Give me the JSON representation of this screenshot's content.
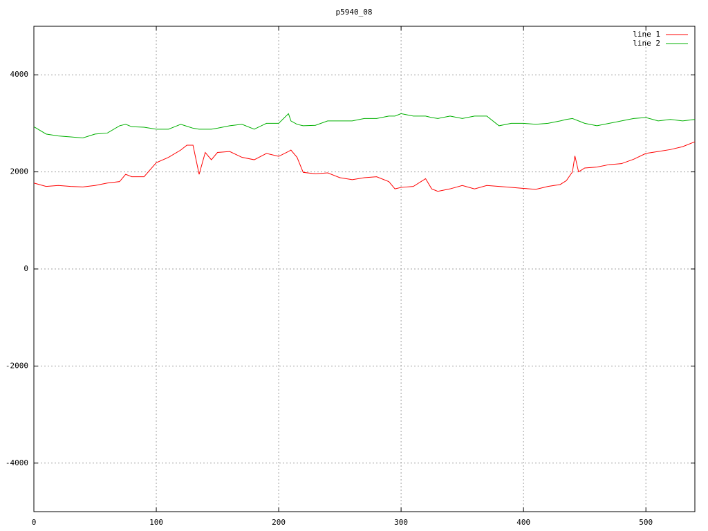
{
  "chart_data": {
    "type": "line",
    "title": "p5940_08",
    "x": [
      0,
      10,
      20,
      30,
      40,
      50,
      60,
      70,
      75,
      80,
      90,
      100,
      110,
      120,
      125,
      130,
      135,
      140,
      145,
      150,
      160,
      170,
      180,
      190,
      200,
      208,
      210,
      215,
      220,
      230,
      240,
      250,
      260,
      270,
      280,
      290,
      295,
      300,
      310,
      320,
      325,
      330,
      340,
      350,
      360,
      370,
      380,
      390,
      400,
      410,
      420,
      430,
      435,
      440,
      442,
      445,
      450,
      460,
      470,
      480,
      490,
      500,
      510,
      520,
      530,
      540
    ],
    "series": [
      {
        "name": "line 1",
        "color": "#ff0000",
        "values": [
          1770,
          1700,
          1720,
          1700,
          1690,
          1720,
          1770,
          1800,
          1950,
          1900,
          1900,
          2190,
          2300,
          2450,
          2550,
          2550,
          1950,
          2400,
          2250,
          2400,
          2420,
          2300,
          2250,
          2380,
          2320,
          2420,
          2450,
          2300,
          1990,
          1960,
          1980,
          1880,
          1840,
          1880,
          1900,
          1800,
          1650,
          1680,
          1700,
          1860,
          1650,
          1600,
          1650,
          1720,
          1650,
          1720,
          1700,
          1680,
          1660,
          1640,
          1700,
          1740,
          1820,
          2000,
          2330,
          2000,
          2080,
          2100,
          2150,
          2170,
          2260,
          2380,
          2420,
          2460,
          2520,
          2620
        ]
      },
      {
        "name": "line 2",
        "color": "#00b000",
        "values": [
          2930,
          2780,
          2740,
          2720,
          2700,
          2780,
          2800,
          2950,
          2980,
          2930,
          2920,
          2880,
          2880,
          2980,
          2940,
          2900,
          2880,
          2880,
          2880,
          2900,
          2950,
          2980,
          2880,
          3000,
          3000,
          3200,
          3050,
          2980,
          2950,
          2960,
          3050,
          3050,
          3050,
          3100,
          3100,
          3150,
          3150,
          3200,
          3150,
          3150,
          3120,
          3100,
          3150,
          3100,
          3150,
          3150,
          2950,
          3000,
          3000,
          2980,
          3000,
          3050,
          3080,
          3100,
          3080,
          3050,
          3000,
          2950,
          3000,
          3050,
          3100,
          3120,
          3050,
          3080,
          3050,
          3080
        ]
      }
    ],
    "xlim": [
      0,
      540
    ],
    "ylim": [
      -5000,
      5000
    ],
    "xticks": [
      0,
      100,
      200,
      300,
      400,
      500
    ],
    "yticks": [
      -4000,
      -2000,
      0,
      2000,
      4000
    ],
    "grid": true,
    "legend": "top-right"
  }
}
